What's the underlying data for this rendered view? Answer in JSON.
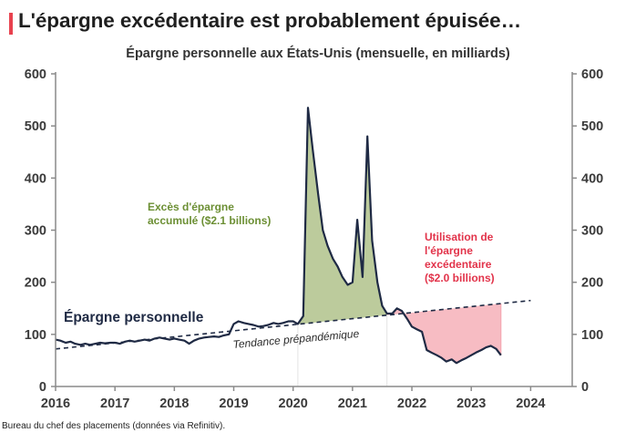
{
  "headline": "L'épargne excédentaire est probablement épuisée…",
  "source": "Bureau du chef des placements (données via Refinitiv).",
  "colors": {
    "accent_bar": "#e8424f",
    "savings_line": "#1f2a44",
    "trend_line": "#1f2a44",
    "excess_fill": "#bccb9c",
    "excess_text": "#6c8f34",
    "deficit_fill": "#f7bcc3",
    "deficit_text": "#e2334a",
    "axis": "#8a8a8a"
  },
  "chart_data": {
    "type": "line",
    "title": "Épargne personnelle aux États-Unis (mensuelle, en milliards)",
    "xlim": [
      2016,
      2024.7
    ],
    "ylim": [
      0,
      600
    ],
    "y_ticks": [
      0,
      100,
      200,
      300,
      400,
      500,
      600
    ],
    "x_ticks": [
      2016,
      2017,
      2018,
      2019,
      2020,
      2021,
      2022,
      2023,
      2024
    ],
    "grid": false,
    "dual_y_axis": true,
    "series": [
      {
        "name": "Épargne personnelle",
        "x": [
          2016.0,
          2016.08,
          2016.17,
          2016.25,
          2016.33,
          2016.42,
          2016.5,
          2016.58,
          2016.67,
          2016.75,
          2016.83,
          2016.92,
          2017.0,
          2017.08,
          2017.17,
          2017.25,
          2017.33,
          2017.42,
          2017.5,
          2017.58,
          2017.67,
          2017.75,
          2017.83,
          2017.92,
          2018.0,
          2018.08,
          2018.17,
          2018.25,
          2018.33,
          2018.42,
          2018.5,
          2018.58,
          2018.67,
          2018.75,
          2018.83,
          2018.92,
          2019.0,
          2019.08,
          2019.17,
          2019.25,
          2019.33,
          2019.42,
          2019.5,
          2019.58,
          2019.67,
          2019.75,
          2019.83,
          2019.92,
          2020.0,
          2020.08,
          2020.17,
          2020.25,
          2020.33,
          2020.42,
          2020.5,
          2020.58,
          2020.67,
          2020.75,
          2020.83,
          2020.92,
          2021.0,
          2021.08,
          2021.17,
          2021.25,
          2021.33,
          2021.42,
          2021.5,
          2021.58,
          2021.67,
          2021.75,
          2021.83,
          2021.92,
          2022.0,
          2022.08,
          2022.17,
          2022.25,
          2022.33,
          2022.42,
          2022.5,
          2022.58,
          2022.67,
          2022.75,
          2022.83,
          2022.92,
          2023.0,
          2023.08,
          2023.17,
          2023.25,
          2023.33,
          2023.42,
          2023.5
        ],
        "values": [
          90,
          88,
          84,
          86,
          82,
          80,
          82,
          80,
          82,
          84,
          83,
          84,
          84,
          82,
          86,
          88,
          86,
          88,
          90,
          88,
          92,
          94,
          92,
          90,
          92,
          90,
          88,
          82,
          88,
          92,
          94,
          95,
          96,
          95,
          98,
          100,
          120,
          125,
          122,
          120,
          118,
          115,
          116,
          118,
          122,
          120,
          122,
          125,
          125,
          120,
          135,
          535,
          455,
          370,
          300,
          270,
          245,
          230,
          210,
          195,
          200,
          320,
          210,
          480,
          280,
          200,
          155,
          140,
          140,
          150,
          145,
          130,
          115,
          110,
          105,
          70,
          65,
          60,
          55,
          48,
          52,
          45,
          50,
          55,
          60,
          65,
          70,
          75,
          78,
          72,
          60
        ]
      },
      {
        "name": "Tendance prépandémique",
        "style": "dashed",
        "x": [
          2016,
          2024
        ],
        "values": [
          72,
          165
        ]
      }
    ],
    "annotations": {
      "excess": {
        "line1": "Excès d'épargne",
        "line2": "accumulé ($2.1 billions)"
      },
      "depletion": {
        "line1": "Utilisation de",
        "line2": "l'épargne",
        "line3": "excédentaire",
        "line4": "($2.0 billions)"
      }
    }
  }
}
